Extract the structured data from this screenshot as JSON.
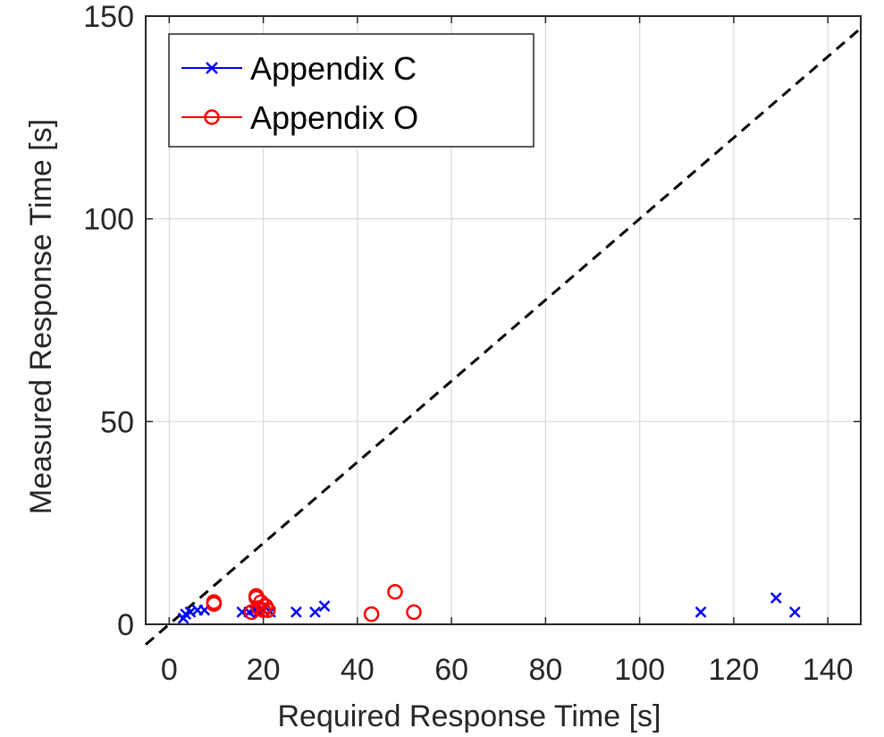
{
  "chart_data": {
    "type": "scatter",
    "xlabel": "Required Response Time [s]",
    "ylabel": "Measured Response Time [s]",
    "xlim": [
      -5,
      147
    ],
    "ylim": [
      0,
      150
    ],
    "xticks": [
      0,
      20,
      40,
      60,
      80,
      100,
      120,
      140
    ],
    "yticks": [
      0,
      50,
      100,
      150
    ],
    "grid": true,
    "legend_position": "top-left",
    "reference_line": {
      "style": "dashed",
      "color": "#000000",
      "from": [
        -5,
        -5
      ],
      "to": [
        147,
        147
      ]
    },
    "series": [
      {
        "name": "Appendix C",
        "marker": "x",
        "color": "#0000ff",
        "points": [
          {
            "x": 3,
            "y": 1.5
          },
          {
            "x": 3.5,
            "y": 2.5
          },
          {
            "x": 4.5,
            "y": 3
          },
          {
            "x": 6,
            "y": 3.5
          },
          {
            "x": 7.5,
            "y": 3.5
          },
          {
            "x": 15.5,
            "y": 3
          },
          {
            "x": 17,
            "y": 3
          },
          {
            "x": 18,
            "y": 3.5
          },
          {
            "x": 19,
            "y": 3
          },
          {
            "x": 20,
            "y": 3.5
          },
          {
            "x": 21.5,
            "y": 3
          },
          {
            "x": 27,
            "y": 3
          },
          {
            "x": 31,
            "y": 3
          },
          {
            "x": 33,
            "y": 4.5
          },
          {
            "x": 113,
            "y": 3
          },
          {
            "x": 129,
            "y": 6.5
          },
          {
            "x": 133,
            "y": 3
          }
        ]
      },
      {
        "name": "Appendix O",
        "marker": "o",
        "color": "#ff0000",
        "points": [
          {
            "x": 9.5,
            "y": 5
          },
          {
            "x": 9.5,
            "y": 5.5
          },
          {
            "x": 17.5,
            "y": 3
          },
          {
            "x": 18.5,
            "y": 6.5
          },
          {
            "x": 18.5,
            "y": 7
          },
          {
            "x": 19,
            "y": 4
          },
          {
            "x": 19.5,
            "y": 5.5
          },
          {
            "x": 20,
            "y": 3.5
          },
          {
            "x": 20.5,
            "y": 4.5
          },
          {
            "x": 21,
            "y": 3.5
          },
          {
            "x": 43,
            "y": 2.5
          },
          {
            "x": 48,
            "y": 8
          },
          {
            "x": 52,
            "y": 3
          }
        ]
      }
    ]
  }
}
